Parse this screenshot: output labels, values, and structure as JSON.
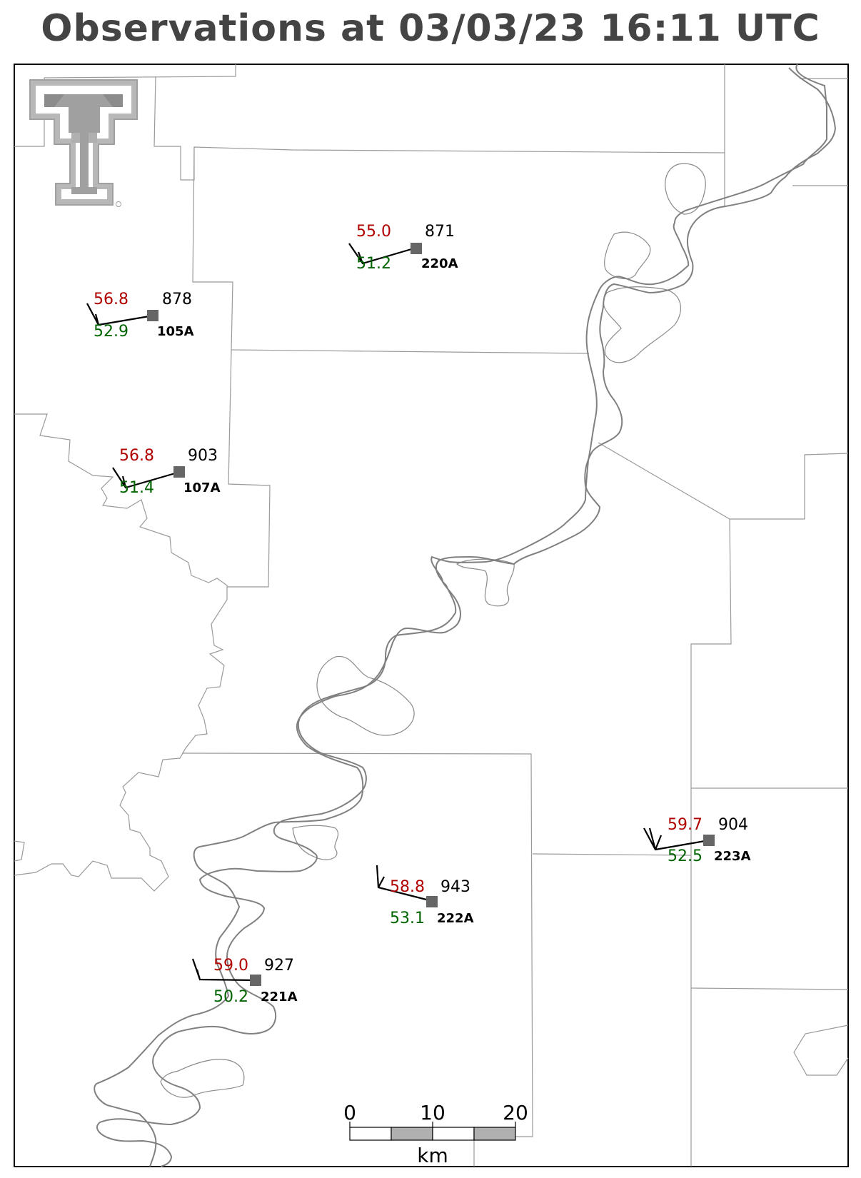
{
  "title": "Observations at 03/03/23 16:11 UTC",
  "logo": {
    "name": "texas-tech-double-t-logo",
    "color": "#a0a0a0"
  },
  "colors": {
    "temperature": "#b00000",
    "dewpoint": "#006400",
    "station_marker": "#666666",
    "river": "#808080",
    "county_line": "#9a9a9a"
  },
  "stations": [
    {
      "id": "220A",
      "temperature": "55.0",
      "dewpoint": "51.2",
      "pressure": "871"
    },
    {
      "id": "105A",
      "temperature": "56.8",
      "dewpoint": "52.9",
      "pressure": "878"
    },
    {
      "id": "107A",
      "temperature": "56.8",
      "dewpoint": "51.4",
      "pressure": "903"
    },
    {
      "id": "223A",
      "temperature": "59.7",
      "dewpoint": "52.5",
      "pressure": "904"
    },
    {
      "id": "222A",
      "temperature": "58.8",
      "dewpoint": "53.1",
      "pressure": "943"
    },
    {
      "id": "221A",
      "temperature": "59.0",
      "dewpoint": "50.2",
      "pressure": "927"
    }
  ],
  "scale_bar": {
    "labels": [
      "0",
      "10",
      "20"
    ],
    "unit": "km"
  }
}
